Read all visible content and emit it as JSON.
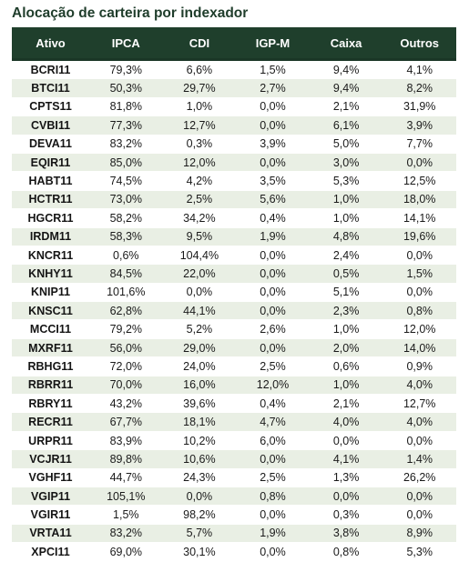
{
  "title": "Alocação de carteira por indexador",
  "headers": [
    "Ativo",
    "IPCA",
    "CDI",
    "IGP-M",
    "Caixa",
    "Outros"
  ],
  "rows": [
    [
      "BCRI11",
      "79,3%",
      "6,6%",
      "1,5%",
      "9,4%",
      "4,1%"
    ],
    [
      "BTCI11",
      "50,3%",
      "29,7%",
      "2,7%",
      "9,4%",
      "8,2%"
    ],
    [
      "CPTS11",
      "81,8%",
      "1,0%",
      "0,0%",
      "2,1%",
      "31,9%"
    ],
    [
      "CVBI11",
      "77,3%",
      "12,7%",
      "0,0%",
      "6,1%",
      "3,9%"
    ],
    [
      "DEVA11",
      "83,2%",
      "0,3%",
      "3,9%",
      "5,0%",
      "7,7%"
    ],
    [
      "EQIR11",
      "85,0%",
      "12,0%",
      "0,0%",
      "3,0%",
      "0,0%"
    ],
    [
      "HABT11",
      "74,5%",
      "4,2%",
      "3,5%",
      "5,3%",
      "12,5%"
    ],
    [
      "HCTR11",
      "73,0%",
      "2,5%",
      "5,6%",
      "1,0%",
      "18,0%"
    ],
    [
      "HGCR11",
      "58,2%",
      "34,2%",
      "0,4%",
      "1,0%",
      "14,1%"
    ],
    [
      "IRDM11",
      "58,3%",
      "9,5%",
      "1,9%",
      "4,8%",
      "19,6%"
    ],
    [
      "KNCR11",
      "0,6%",
      "104,4%",
      "0,0%",
      "2,4%",
      "0,0%"
    ],
    [
      "KNHY11",
      "84,5%",
      "22,0%",
      "0,0%",
      "0,5%",
      "1,5%"
    ],
    [
      "KNIP11",
      "101,6%",
      "0,0%",
      "0,0%",
      "5,1%",
      "0,0%"
    ],
    [
      "KNSC11",
      "62,8%",
      "44,1%",
      "0,0%",
      "2,3%",
      "0,8%"
    ],
    [
      "MCCI11",
      "79,2%",
      "5,2%",
      "2,6%",
      "1,0%",
      "12,0%"
    ],
    [
      "MXRF11",
      "56,0%",
      "29,0%",
      "0,0%",
      "2,0%",
      "14,0%"
    ],
    [
      "RBHG11",
      "72,0%",
      "24,0%",
      "2,5%",
      "0,6%",
      "0,9%"
    ],
    [
      "RBRR11",
      "70,0%",
      "16,0%",
      "12,0%",
      "1,0%",
      "4,0%"
    ],
    [
      "RBRY11",
      "43,2%",
      "39,6%",
      "0,4%",
      "2,1%",
      "12,7%"
    ],
    [
      "RECR11",
      "67,7%",
      "18,1%",
      "4,7%",
      "4,0%",
      "4,0%"
    ],
    [
      "URPR11",
      "83,9%",
      "10,2%",
      "6,0%",
      "0,0%",
      "0,0%"
    ],
    [
      "VCJR11",
      "89,8%",
      "10,6%",
      "0,0%",
      "4,1%",
      "1,4%"
    ],
    [
      "VGHF11",
      "44,7%",
      "24,3%",
      "2,5%",
      "1,3%",
      "26,2%"
    ],
    [
      "VGIP11",
      "105,1%",
      "0,0%",
      "0,8%",
      "0,0%",
      "0,0%"
    ],
    [
      "VGIR11",
      "1,5%",
      "98,2%",
      "0,0%",
      "0,3%",
      "0,0%"
    ],
    [
      "VRTA11",
      "83,2%",
      "5,7%",
      "1,9%",
      "3,8%",
      "8,9%"
    ],
    [
      "XPCI11",
      "69,0%",
      "30,1%",
      "0,0%",
      "0,8%",
      "5,3%"
    ]
  ]
}
